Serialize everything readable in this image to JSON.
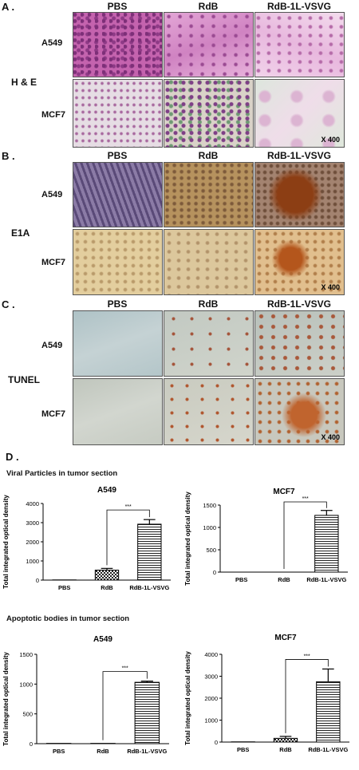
{
  "panels": {
    "A": {
      "letter": "A .",
      "columns": [
        "PBS",
        "RdB",
        "RdB-1L-VSVG"
      ],
      "rows": [
        "A549",
        "MCF7"
      ],
      "stain": "H & E",
      "magnification": "X 400"
    },
    "B": {
      "letter": "B .",
      "columns": [
        "PBS",
        "RdB",
        "RdB-1L-VSVG"
      ],
      "rows": [
        "A549",
        "MCF7"
      ],
      "stain": "E1A",
      "magnification": "X 400"
    },
    "C": {
      "letter": "C .",
      "columns": [
        "PBS",
        "RdB",
        "RdB-1L-VSVG"
      ],
      "rows": [
        "A549",
        "MCF7"
      ],
      "stain": "TUNEL",
      "magnification": "X 400"
    },
    "D": {
      "letter": "D .",
      "section1_title": "Viral Particles in tumor section",
      "section2_title": "Apoptotic bodies in tumor section"
    }
  },
  "colors": {
    "he_pink": "#c06aa8",
    "he_light": "#e8dce8",
    "e1a_purple": "#6d5c8a",
    "e1a_tan": "#c8a46a",
    "e1a_brown": "#a8642a",
    "tunel_blue": "#b8c8cc",
    "tunel_grey": "#c9cdc4",
    "tunel_brown": "#b86a3a"
  },
  "chart_data": [
    {
      "type": "bar",
      "title": "A549",
      "ylabel": "Total integrated optical density",
      "categories": [
        "PBS",
        "RdB",
        "RdB-1L-VSVG"
      ],
      "values": [
        10,
        520,
        2920
      ],
      "errors": [
        0,
        90,
        240
      ],
      "ylim": [
        0,
        4000
      ],
      "yticks": [
        "0",
        "1000",
        "2000",
        "3000",
        "4000"
      ],
      "significance": "***"
    },
    {
      "type": "bar",
      "title": "MCF7",
      "ylabel": "Total integrated optical density",
      "categories": [
        "PBS",
        "RdB",
        "RdB-1L-VSVG"
      ],
      "values": [
        0,
        0,
        1270
      ],
      "errors": [
        0,
        0,
        110
      ],
      "ylim": [
        0,
        1500
      ],
      "yticks": [
        "0",
        "500",
        "1000",
        "1500"
      ],
      "significance": "***"
    },
    {
      "type": "bar",
      "title": "A549",
      "ylabel": "Total integrated optical density",
      "categories": [
        "PBS",
        "RdB",
        "RdB-1L-VSVG"
      ],
      "values": [
        5,
        5,
        1030
      ],
      "errors": [
        0,
        0,
        20
      ],
      "ylim": [
        0,
        1500
      ],
      "yticks": [
        "0",
        "500",
        "1000",
        "1500"
      ],
      "significance": "***"
    },
    {
      "type": "bar",
      "title": "MCF7",
      "ylabel": "Total integrated optical density",
      "categories": [
        "PBS",
        "RdB",
        "RdB-1L-VSVG"
      ],
      "values": [
        10,
        170,
        2750
      ],
      "errors": [
        0,
        90,
        580
      ],
      "ylim": [
        0,
        4000
      ],
      "yticks": [
        "0",
        "1000",
        "2000",
        "3000",
        "4000"
      ],
      "significance": "***"
    }
  ]
}
